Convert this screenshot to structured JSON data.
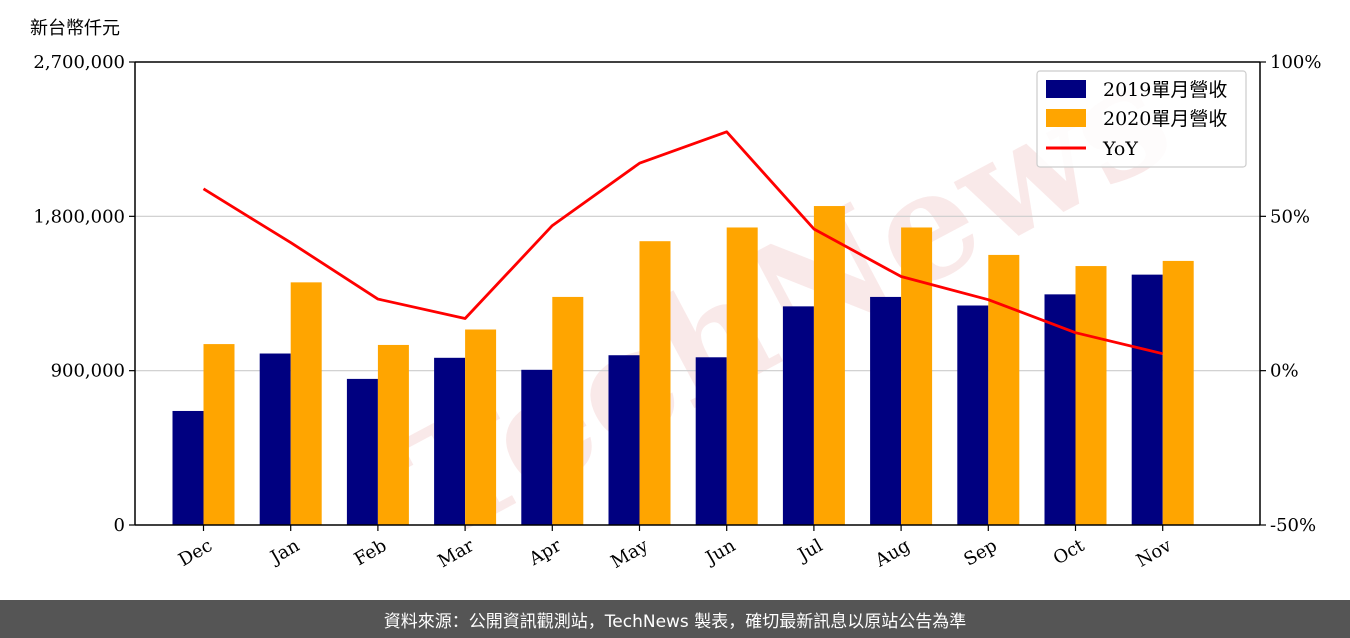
{
  "chart_data": {
    "type": "bar",
    "y_unit_label": "新台幣仟元",
    "categories": [
      "Dec",
      "Jan",
      "Feb",
      "Mar",
      "Apr",
      "May",
      "Jun",
      "Jul",
      "Aug",
      "Sep",
      "Oct",
      "Nov"
    ],
    "series": [
      {
        "name": "2019單月營收",
        "type": "bar",
        "color": "#000080",
        "values": [
          665000,
          1000000,
          852000,
          975000,
          905000,
          990000,
          978000,
          1275000,
          1330000,
          1280000,
          1345000,
          1460000
        ]
      },
      {
        "name": "2020單月營收",
        "type": "bar",
        "color": "#FFA500",
        "values": [
          1055000,
          1415000,
          1050000,
          1140000,
          1330000,
          1655000,
          1735000,
          1860000,
          1735000,
          1575000,
          1510000,
          1540000
        ]
      },
      {
        "name": "YoY",
        "type": "line",
        "axis": "right",
        "color": "#FF0000",
        "values": [
          58.9,
          41.5,
          23.2,
          16.9,
          47.0,
          67.2,
          77.4,
          45.9,
          30.5,
          23.0,
          12.3,
          5.5
        ]
      }
    ],
    "ylim_left": [
      0,
      2700000
    ],
    "yticks_left": [
      "0",
      "900,000",
      "1,800,000",
      "2,700,000"
    ],
    "ylim_right": [
      -50,
      100
    ],
    "yticks_right": [
      "-50%",
      "0%",
      "50%",
      "100%"
    ],
    "grid": "horizontal",
    "legend_position": "top-right",
    "watermark": "TechNews"
  },
  "footer_text": "資料來源：公開資訊觀測站，TechNews 製表，確切最新訊息以原站公告為準"
}
